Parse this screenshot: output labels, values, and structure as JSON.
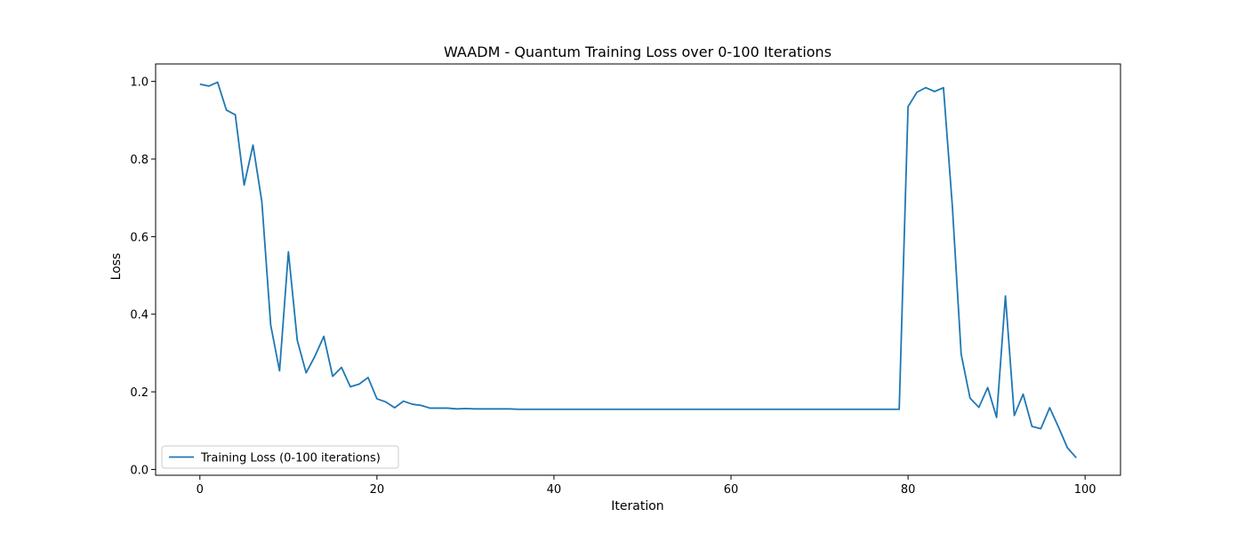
{
  "chart_data": {
    "type": "line",
    "title": "WAADM - Quantum Training Loss over 0-100 Iterations",
    "xlabel": "Iteration",
    "ylabel": "Loss",
    "xlim": [
      -5,
      104
    ],
    "ylim": [
      -0.015,
      1.045
    ],
    "xticks": [
      0,
      20,
      40,
      60,
      80,
      100
    ],
    "yticks": [
      0.0,
      0.2,
      0.4,
      0.6,
      0.8,
      1.0
    ],
    "grid": false,
    "legend_position": "lower-left",
    "series": [
      {
        "name": "Training Loss (0-100 iterations)",
        "color": "#1f77b4",
        "x": [
          0,
          1,
          2,
          3,
          4,
          5,
          6,
          7,
          8,
          9,
          10,
          11,
          12,
          13,
          14,
          15,
          16,
          17,
          18,
          19,
          20,
          21,
          22,
          23,
          24,
          25,
          26,
          27,
          28,
          29,
          30,
          31,
          32,
          33,
          34,
          35,
          36,
          37,
          38,
          39,
          40,
          41,
          42,
          43,
          44,
          45,
          46,
          47,
          48,
          49,
          50,
          51,
          52,
          53,
          54,
          55,
          56,
          57,
          58,
          59,
          60,
          61,
          62,
          63,
          64,
          65,
          66,
          67,
          68,
          69,
          70,
          71,
          72,
          73,
          74,
          75,
          76,
          77,
          78,
          79,
          80,
          81,
          82,
          83,
          84,
          85,
          86,
          87,
          88,
          89,
          90,
          91,
          92,
          93,
          94,
          95,
          96,
          97,
          98,
          99
        ],
        "values": [
          0.993,
          0.988,
          0.998,
          0.926,
          0.914,
          0.733,
          0.836,
          0.69,
          0.372,
          0.254,
          0.561,
          0.333,
          0.249,
          0.292,
          0.343,
          0.24,
          0.263,
          0.213,
          0.22,
          0.237,
          0.182,
          0.174,
          0.159,
          0.176,
          0.168,
          0.165,
          0.158,
          0.158,
          0.158,
          0.156,
          0.157,
          0.156,
          0.156,
          0.156,
          0.156,
          0.156,
          0.155,
          0.155,
          0.155,
          0.155,
          0.155,
          0.155,
          0.155,
          0.155,
          0.155,
          0.155,
          0.155,
          0.155,
          0.155,
          0.155,
          0.155,
          0.155,
          0.155,
          0.155,
          0.155,
          0.155,
          0.155,
          0.155,
          0.155,
          0.155,
          0.155,
          0.155,
          0.155,
          0.155,
          0.155,
          0.155,
          0.155,
          0.155,
          0.155,
          0.155,
          0.155,
          0.155,
          0.155,
          0.155,
          0.155,
          0.155,
          0.155,
          0.155,
          0.155,
          0.155,
          0.935,
          0.972,
          0.984,
          0.974,
          0.984,
          0.68,
          0.297,
          0.184,
          0.16,
          0.211,
          0.134,
          0.447,
          0.139,
          0.194,
          0.111,
          0.105,
          0.159,
          0.109,
          0.056,
          0.03
        ]
      }
    ]
  }
}
